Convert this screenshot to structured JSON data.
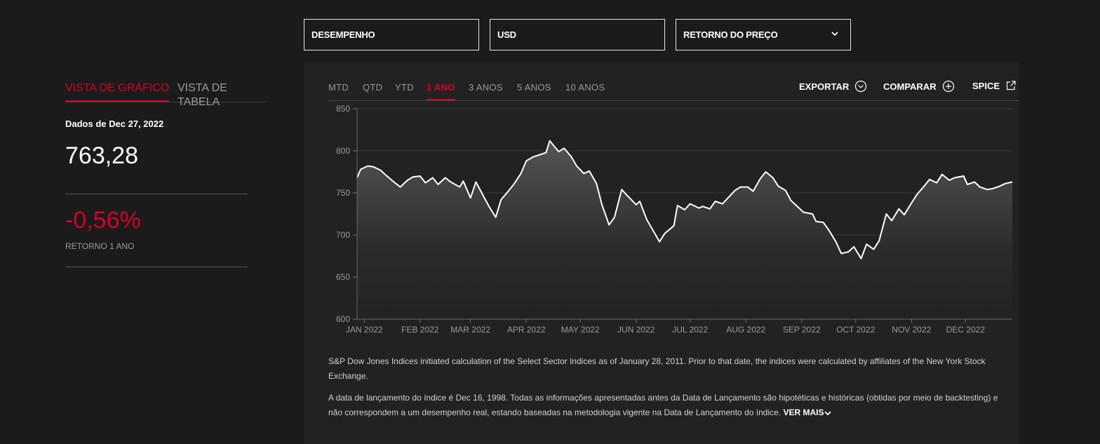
{
  "filters": {
    "performance": "DESEMPENHO",
    "currency": "USD",
    "return_type": "RETORNO DO PREÇO"
  },
  "left": {
    "view_tabs": [
      "VISTA DE GRÁFICO",
      "VISTA DE TABELA"
    ],
    "as_of": "Dados de Dec 27, 2022",
    "value": "763,28",
    "return_pct": "-0,56%",
    "return_label": "RETORNO 1 ANO"
  },
  "chart_panel": {
    "period_tabs": [
      "MTD",
      "QTD",
      "YTD",
      "1 ANO",
      "3 ANOS",
      "5 ANOS",
      "10 ANOS"
    ],
    "active_period": "1 ANO",
    "actions": {
      "export": "EXPORTAR",
      "compare": "COMPARAR",
      "spice": "SPICE"
    }
  },
  "notes": {
    "note1": "S&P Dow Jones Indices initiated calculation of the Select Sector Indices as of January 28, 2011. Prior to that date, the indices were calculated by affiliates of the New York Stock Exchange.",
    "note2": "A data de lançamento do índice é Dec 16, 1998. Todas as informações apresentadas antes da Data de Lançamento são hipotéticas e históricas (obtidas por meio de backtesting) e não correspondem a um desempenho real, estando baseadas na metodologia vigente na Data de Lançamento do índice.",
    "more": "VER MAIS"
  },
  "colors": {
    "accent": "#d6002a",
    "background": "#1b1b1b",
    "panel": "#222222",
    "line": "#ffffff"
  },
  "chart_data": {
    "type": "area",
    "title": "",
    "xlabel": "",
    "ylabel": "",
    "ylim": [
      600,
      850
    ],
    "yticks": [
      600,
      650,
      700,
      750,
      800,
      850
    ],
    "xlim": [
      "2021-12-28",
      "2022-12-27"
    ],
    "xtick_labels": [
      "JAN 2022",
      "FEB 2022",
      "MAR 2022",
      "APR 2022",
      "MAY 2022",
      "JUN 2022",
      "JUL 2022",
      "AUG 2022",
      "SEP 2022",
      "OCT 2022",
      "NOV 2022",
      "DEC 2022"
    ],
    "xtick_dates": [
      "2022-01-01",
      "2022-02-01",
      "2022-03-01",
      "2022-04-01",
      "2022-05-01",
      "2022-06-01",
      "2022-07-01",
      "2022-08-01",
      "2022-09-01",
      "2022-10-01",
      "2022-11-01",
      "2022-12-01"
    ],
    "grid": true,
    "series": [
      {
        "x": [
          "2021-12-28",
          "2021-12-30",
          "2022-01-03",
          "2022-01-06",
          "2022-01-10",
          "2022-01-13",
          "2022-01-18",
          "2022-01-21",
          "2022-01-25",
          "2022-01-28",
          "2022-02-01",
          "2022-02-04",
          "2022-02-08",
          "2022-02-11",
          "2022-02-15",
          "2022-02-18",
          "2022-02-23",
          "2022-02-25",
          "2022-03-01",
          "2022-03-04",
          "2022-03-08",
          "2022-03-11",
          "2022-03-15",
          "2022-03-18",
          "2022-03-22",
          "2022-03-25",
          "2022-03-29",
          "2022-04-01",
          "2022-04-05",
          "2022-04-08",
          "2022-04-12",
          "2022-04-14",
          "2022-04-19",
          "2022-04-22",
          "2022-04-26",
          "2022-04-29",
          "2022-05-03",
          "2022-05-06",
          "2022-05-10",
          "2022-05-13",
          "2022-05-17",
          "2022-05-20",
          "2022-05-24",
          "2022-05-27",
          "2022-06-01",
          "2022-06-03",
          "2022-06-07",
          "2022-06-10",
          "2022-06-14",
          "2022-06-17",
          "2022-06-22",
          "2022-06-24",
          "2022-06-28",
          "2022-07-01",
          "2022-07-06",
          "2022-07-08",
          "2022-07-12",
          "2022-07-15",
          "2022-07-19",
          "2022-07-22",
          "2022-07-26",
          "2022-07-29",
          "2022-08-02",
          "2022-08-05",
          "2022-08-09",
          "2022-08-12",
          "2022-08-16",
          "2022-08-19",
          "2022-08-23",
          "2022-08-26",
          "2022-08-30",
          "2022-09-02",
          "2022-09-07",
          "2022-09-09",
          "2022-09-13",
          "2022-09-16",
          "2022-09-20",
          "2022-09-23",
          "2022-09-27",
          "2022-09-30",
          "2022-10-04",
          "2022-10-07",
          "2022-10-11",
          "2022-10-14",
          "2022-10-18",
          "2022-10-21",
          "2022-10-25",
          "2022-10-28",
          "2022-11-01",
          "2022-11-04",
          "2022-11-08",
          "2022-11-11",
          "2022-11-15",
          "2022-11-18",
          "2022-11-22",
          "2022-11-25",
          "2022-11-30",
          "2022-12-02",
          "2022-12-06",
          "2022-12-09",
          "2022-12-13",
          "2022-12-16",
          "2022-12-20",
          "2022-12-23",
          "2022-12-27"
        ],
        "values": [
          768,
          778,
          782,
          781,
          777,
          771,
          762,
          757,
          765,
          769,
          770,
          762,
          768,
          760,
          768,
          763,
          757,
          764,
          744,
          763,
          747,
          735,
          721,
          742,
          752,
          760,
          773,
          788,
          793,
          795,
          798,
          812,
          799,
          803,
          793,
          782,
          773,
          776,
          761,
          736,
          712,
          721,
          754,
          747,
          736,
          740,
          718,
          707,
          692,
          702,
          711,
          735,
          730,
          737,
          732,
          734,
          731,
          740,
          737,
          744,
          753,
          757,
          757,
          752,
          767,
          775,
          768,
          758,
          753,
          741,
          733,
          727,
          725,
          716,
          715,
          706,
          692,
          678,
          680,
          686,
          672,
          689,
          683,
          693,
          725,
          717,
          731,
          724,
          738,
          748,
          758,
          766,
          762,
          772,
          765,
          768,
          770,
          760,
          763,
          757,
          754,
          755,
          758,
          761,
          763
        ]
      }
    ]
  }
}
